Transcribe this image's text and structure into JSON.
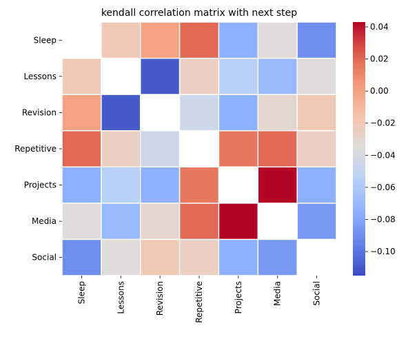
{
  "chart_data": {
    "type": "heatmap",
    "title": "kendall correlation matrix with next step",
    "xlabel": "",
    "ylabel": "",
    "row_labels": [
      "Sleep",
      "Lessons",
      "Revision",
      "Repetitive",
      "Projects",
      "Media",
      "Social"
    ],
    "col_labels": [
      "Sleep",
      "Lessons",
      "Revision",
      "Repetitive",
      "Projects",
      "Media",
      "Social"
    ],
    "values": [
      [
        null,
        -0.02,
        0.0,
        0.02,
        -0.075,
        -0.035,
        -0.09
      ],
      [
        -0.02,
        null,
        -0.11,
        -0.025,
        -0.055,
        -0.07,
        -0.035
      ],
      [
        0.0,
        -0.11,
        null,
        -0.045,
        -0.075,
        -0.03,
        -0.02
      ],
      [
        0.02,
        -0.025,
        -0.045,
        null,
        0.015,
        0.02,
        -0.025
      ],
      [
        -0.075,
        -0.055,
        -0.075,
        0.015,
        null,
        0.043,
        -0.075
      ],
      [
        -0.035,
        -0.07,
        -0.03,
        0.02,
        0.043,
        null,
        -0.085
      ],
      [
        -0.09,
        -0.035,
        -0.02,
        -0.025,
        -0.075,
        -0.085,
        null
      ]
    ],
    "colormap": "coolwarm",
    "vmin": -0.115,
    "vmax": 0.043,
    "colorbar_ticks": [
      0.04,
      0.02,
      0.0,
      -0.02,
      -0.04,
      -0.06,
      -0.08,
      -0.1
    ],
    "colorbar_tick_labels": [
      "0.04",
      "0.02",
      "0.00",
      "−0.02",
      "−0.04",
      "−0.06",
      "−0.08",
      "−0.10"
    ],
    "cell_gap_color": "#ffffff",
    "missing_color": "#ffffff"
  }
}
